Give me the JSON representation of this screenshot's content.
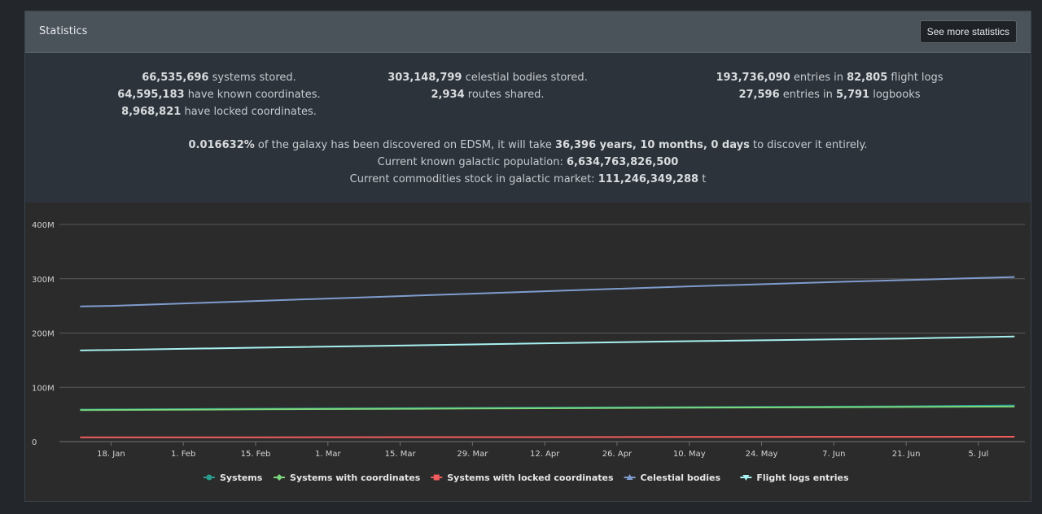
{
  "header": {
    "title": "Statistics",
    "more_button": "See more statistics"
  },
  "stats": {
    "col1": {
      "l1_value": "66,535,696",
      "l1_text": "systems stored.",
      "l2_value": "64,595,183",
      "l2_text": "have known coordinates.",
      "l3_value": "8,968,821",
      "l3_text": "have locked coordinates."
    },
    "col2": {
      "l1_value": "303,148,799",
      "l1_text": "celestial bodies stored.",
      "l2_value": "2,934",
      "l2_text": "routes shared."
    },
    "col3": {
      "l1_value": "193,736,090",
      "l1_mid": "entries in",
      "l1_value2": "82,805",
      "l1_text": "flight logs",
      "l2_value": "27,596",
      "l2_mid": "entries in",
      "l2_value2": "5,791",
      "l2_text": "logbooks"
    },
    "discovery": {
      "percent": "0.016632%",
      "text1": "of the galaxy has been discovered on EDSM, it will take",
      "duration": "36,396 years, 10 months, 0 days",
      "text2": "to discover it entirely."
    },
    "population": {
      "label": "Current known galactic population:",
      "value": "6,634,763,826,500"
    },
    "commodities": {
      "label": "Current commodities stock in galactic market:",
      "value": "111,246,349,288",
      "unit": "t"
    }
  },
  "chart_data": {
    "type": "line",
    "ylim": [
      0,
      400000000
    ],
    "y_ticks": [
      {
        "value": 0,
        "label": "0"
      },
      {
        "value": 100000000,
        "label": "100M"
      },
      {
        "value": 200000000,
        "label": "200M"
      },
      {
        "value": 300000000,
        "label": "300M"
      },
      {
        "value": 400000000,
        "label": "400M"
      }
    ],
    "x_range": [
      "2019-01-08",
      "2019-07-14"
    ],
    "x_ticks": [
      {
        "date": "2019-01-18",
        "label": "18. Jan"
      },
      {
        "date": "2019-02-01",
        "label": "1. Feb"
      },
      {
        "date": "2019-02-15",
        "label": "15. Feb"
      },
      {
        "date": "2019-03-01",
        "label": "1. Mar"
      },
      {
        "date": "2019-03-15",
        "label": "15. Mar"
      },
      {
        "date": "2019-03-29",
        "label": "29. Mar"
      },
      {
        "date": "2019-04-12",
        "label": "12. Apr"
      },
      {
        "date": "2019-04-26",
        "label": "26. Apr"
      },
      {
        "date": "2019-05-10",
        "label": "10. May"
      },
      {
        "date": "2019-05-24",
        "label": "24. May"
      },
      {
        "date": "2019-06-07",
        "label": "7. Jun"
      },
      {
        "date": "2019-06-21",
        "label": "21. Jun"
      },
      {
        "date": "2019-07-05",
        "label": "5. Jul"
      }
    ],
    "series": [
      {
        "name": "Systems",
        "color": "#2a9d8f",
        "marker": "circle",
        "x": [
          "2019-01-12",
          "2019-02-15",
          "2019-03-29",
          "2019-05-10",
          "2019-06-21",
          "2019-07-12"
        ],
        "values": [
          59000000,
          60500000,
          62000000,
          63500000,
          65000000,
          66535696
        ]
      },
      {
        "name": "Systems with coordinates",
        "color": "#7cd67c",
        "marker": "diamond",
        "x": [
          "2019-01-12",
          "2019-02-15",
          "2019-03-29",
          "2019-05-10",
          "2019-06-21",
          "2019-07-12"
        ],
        "values": [
          58000000,
          59500000,
          61000000,
          62500000,
          63800000,
          64595183
        ]
      },
      {
        "name": "Systems with locked coordinates",
        "color": "#f25c5c",
        "marker": "square",
        "x": [
          "2019-01-12",
          "2019-02-15",
          "2019-03-29",
          "2019-05-10",
          "2019-06-21",
          "2019-07-12"
        ],
        "values": [
          7800000,
          8000000,
          8300000,
          8500000,
          8800000,
          8968821
        ]
      },
      {
        "name": "Celestial bodies",
        "color": "#7f9ccf",
        "marker": "triangle",
        "x": [
          "2019-01-12",
          "2019-01-18",
          "2019-02-15",
          "2019-03-15",
          "2019-04-12",
          "2019-05-10",
          "2019-06-07",
          "2019-07-12"
        ],
        "values": [
          249000000,
          250000000,
          259000000,
          268000000,
          277000000,
          286000000,
          294000000,
          303148799
        ]
      },
      {
        "name": "Flight logs entries",
        "color": "#a8f0f0",
        "marker": "triangle-down",
        "x": [
          "2019-01-12",
          "2019-02-15",
          "2019-03-29",
          "2019-05-10",
          "2019-06-21",
          "2019-07-12"
        ],
        "values": [
          168000000,
          173000000,
          179000000,
          185000000,
          190000000,
          193736090
        ]
      }
    ]
  }
}
